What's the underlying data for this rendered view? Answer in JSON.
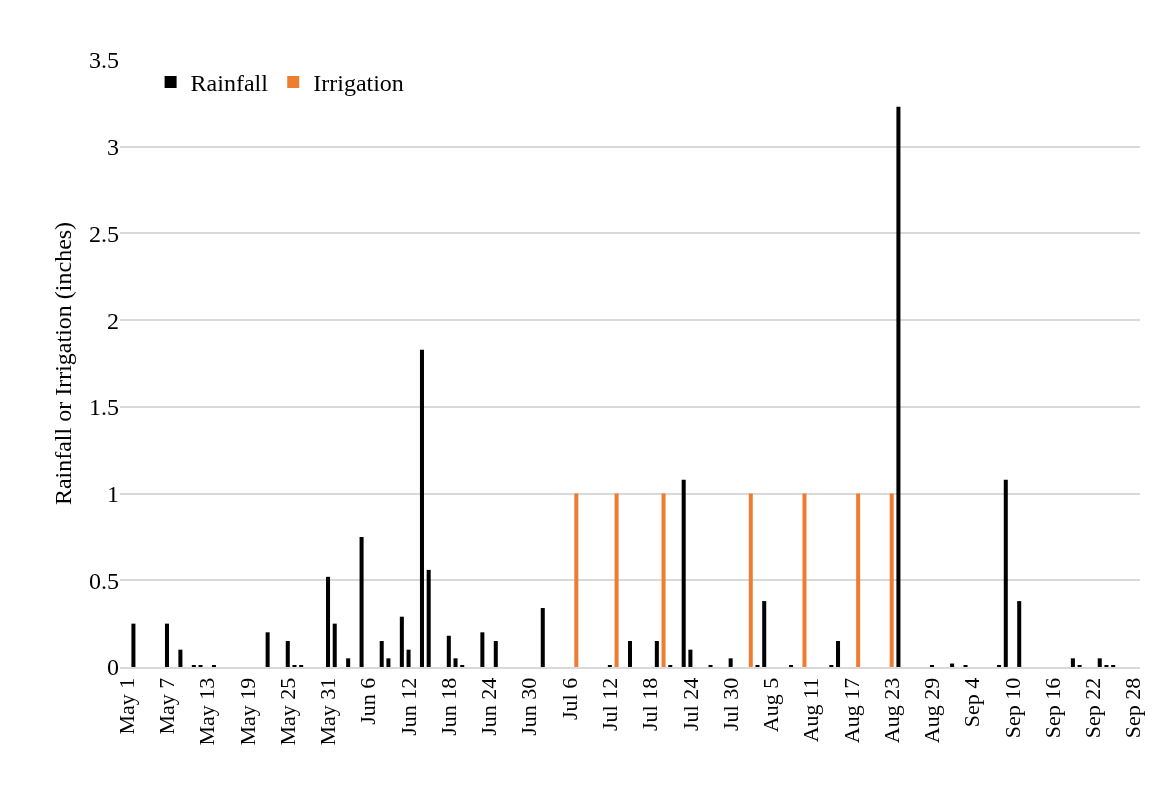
{
  "chart_data": {
    "type": "bar",
    "ylabel": "Rainfall or Irrigation (inches)",
    "series": [
      {
        "name": "Rainfall",
        "color": "#000000",
        "x": [
          "--05-02",
          "--05-07",
          "--05-09",
          "--05-11",
          "--05-12",
          "--05-14",
          "--05-22",
          "--05-25",
          "--05-26",
          "--05-27",
          "--05-31",
          "--06-01",
          "--06-03",
          "--06-05",
          "--06-08",
          "--06-09",
          "--06-11",
          "--06-12",
          "--06-14",
          "--06-15",
          "--06-18",
          "--06-19",
          "--06-20",
          "--06-23",
          "--06-25",
          "--07-02",
          "--07-12",
          "--07-15",
          "--07-19",
          "--07-21",
          "--07-23",
          "--07-24",
          "--07-27",
          "--07-30",
          "--08-03",
          "--08-04",
          "--08-08",
          "--08-14",
          "--08-15",
          "--08-24",
          "--08-29",
          "--09-01",
          "--09-03",
          "--09-08",
          "--09-09",
          "--09-11",
          "--09-19",
          "--09-20",
          "--09-23",
          "--09-24",
          "--09-25"
        ],
        "values": [
          0.25,
          0.25,
          0.1,
          0.01,
          0.01,
          0.01,
          0.2,
          0.15,
          0.01,
          0.01,
          0.52,
          0.25,
          0.05,
          0.75,
          0.15,
          0.05,
          0.29,
          0.1,
          1.83,
          0.56,
          0.18,
          0.05,
          0.01,
          0.2,
          0.15,
          0.34,
          0.01,
          0.15,
          0.15,
          0.01,
          1.08,
          0.1,
          0.01,
          0.05,
          0.01,
          0.38,
          0.01,
          0.01,
          0.15,
          3.23,
          0.01,
          0.02,
          0.01,
          0.01,
          1.08,
          0.38,
          0.05,
          0.01,
          0.05,
          0.01,
          0.01
        ]
      },
      {
        "name": "Irrigation",
        "color": "#ed7d31",
        "x": [
          "--07-07",
          "--07-13",
          "--07-20",
          "--08-02",
          "--08-10",
          "--08-18",
          "--08-23"
        ],
        "values": [
          1,
          1,
          1,
          1,
          1,
          1,
          1
        ]
      }
    ],
    "xlim": [
      "--04-30",
      "--09-29"
    ],
    "xticks": [
      {
        "value": "--05-01",
        "label": "May 1"
      },
      {
        "value": "--05-07",
        "label": "May 7"
      },
      {
        "value": "--05-13",
        "label": "May 13"
      },
      {
        "value": "--05-19",
        "label": "May 19"
      },
      {
        "value": "--05-25",
        "label": "May 25"
      },
      {
        "value": "--05-31",
        "label": "May 31"
      },
      {
        "value": "--06-06",
        "label": "Jun 6"
      },
      {
        "value": "--06-12",
        "label": "Jun 12"
      },
      {
        "value": "--06-18",
        "label": "Jun 18"
      },
      {
        "value": "--06-24",
        "label": "Jun 24"
      },
      {
        "value": "--06-30",
        "label": "Jun 30"
      },
      {
        "value": "--07-06",
        "label": "Jul 6"
      },
      {
        "value": "--07-12",
        "label": "Jul 12"
      },
      {
        "value": "--07-18",
        "label": "Jul 18"
      },
      {
        "value": "--07-24",
        "label": "Jul 24"
      },
      {
        "value": "--07-30",
        "label": "Jul 30"
      },
      {
        "value": "--08-05",
        "label": "Aug 5"
      },
      {
        "value": "--08-11",
        "label": "Aug 11"
      },
      {
        "value": "--08-17",
        "label": "Aug 17"
      },
      {
        "value": "--08-23",
        "label": "Aug 23"
      },
      {
        "value": "--08-29",
        "label": "Aug 29"
      },
      {
        "value": "--09-04",
        "label": "Sep 4"
      },
      {
        "value": "--09-10",
        "label": "Sep 10"
      },
      {
        "value": "--09-16",
        "label": "Sep 16"
      },
      {
        "value": "--09-22",
        "label": "Sep 22"
      },
      {
        "value": "--09-28",
        "label": "Sep 28"
      }
    ],
    "ylim": [
      0,
      3.5
    ],
    "yticks": [
      0,
      0.5,
      1,
      1.5,
      2,
      2.5,
      3,
      3.5
    ],
    "grid": "y",
    "legend": "top left"
  }
}
